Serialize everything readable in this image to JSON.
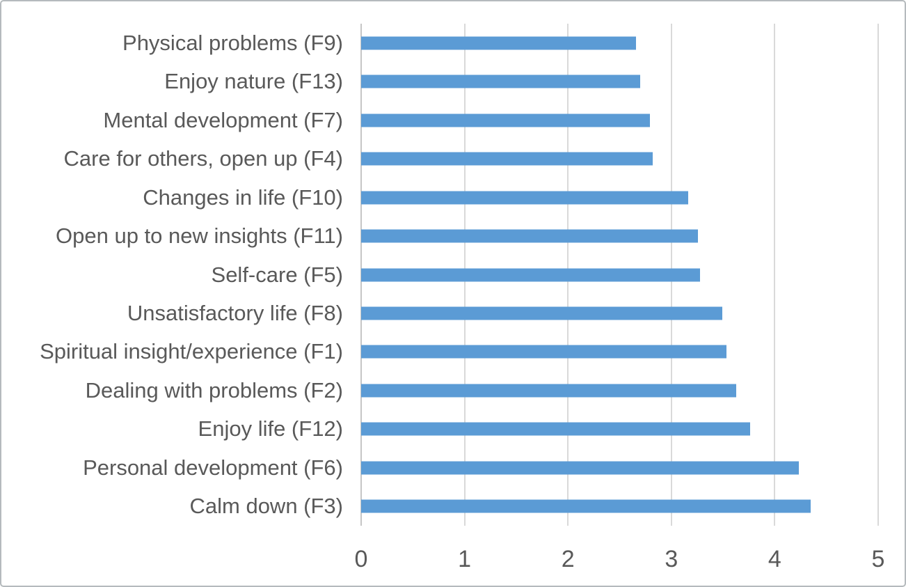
{
  "chart_data": {
    "type": "bar",
    "orientation": "horizontal",
    "title": "",
    "xlabel": "",
    "ylabel": "",
    "xlim": [
      0,
      5
    ],
    "x_ticks": [
      0,
      1,
      2,
      3,
      4,
      5
    ],
    "grid": "vertical-gridlines-on",
    "legend": "none",
    "categories": [
      "Physical problems (F9)",
      "Enjoy nature (F13)",
      "Mental development (F7)",
      "Care for others, open up (F4)",
      "Changes in life (F10)",
      "Open up to new insights (F11)",
      "Self-care (F5)",
      "Unsatisfactory life (F8)",
      "Spiritual insight/experience (F1)",
      "Dealing with problems (F2)",
      "Enjoy life (F12)",
      "Personal development (F6)",
      "Calm down (F3)"
    ],
    "values": [
      2.66,
      2.7,
      2.79,
      2.82,
      3.16,
      3.26,
      3.28,
      3.49,
      3.53,
      3.63,
      3.76,
      4.23,
      4.35
    ],
    "colors": {
      "bar": "#5B9BD5",
      "gridline": "#D9D9D9",
      "axis_line": "#C6C6C6",
      "text": "#595959",
      "frame_border": "#B5BABD",
      "background": "#FFFFFF"
    }
  }
}
